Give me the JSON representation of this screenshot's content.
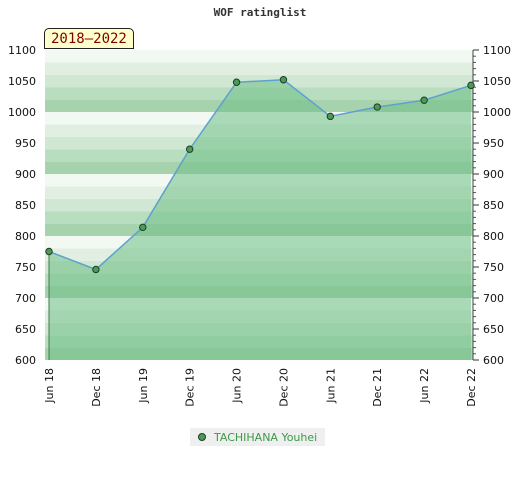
{
  "title": "WOF ratinglist",
  "range_badge": "2018–2022",
  "legend": {
    "label": "TACHIHANA Youhei"
  },
  "colors": {
    "line": "#5fa0d0",
    "area": "#6fbf86",
    "marker_fill": "#4a9a58",
    "marker_stroke": "#1f3d24",
    "band_light": "#f2f8f2",
    "band_mid": "#cfe7d3",
    "band_dark": "#a6d3ae"
  },
  "chart_data": {
    "type": "area",
    "title": "WOF ratinglist",
    "x": [
      "Jun 18",
      "Dec 18",
      "Jun 19",
      "Dec 19",
      "Jun 20",
      "Dec 20",
      "Jun 21",
      "Dec 21",
      "Jun 22",
      "Dec 22"
    ],
    "series": [
      {
        "name": "TACHIHANA Youhei",
        "values": [
          775,
          746,
          814,
          940,
          1048,
          1052,
          993,
          1008,
          1019,
          1043
        ]
      }
    ],
    "ylim": [
      600,
      1100
    ],
    "yticks": [
      600,
      650,
      700,
      750,
      800,
      850,
      900,
      950,
      1000,
      1050,
      1100
    ],
    "grid": true,
    "legend_position": "bottom-center"
  }
}
